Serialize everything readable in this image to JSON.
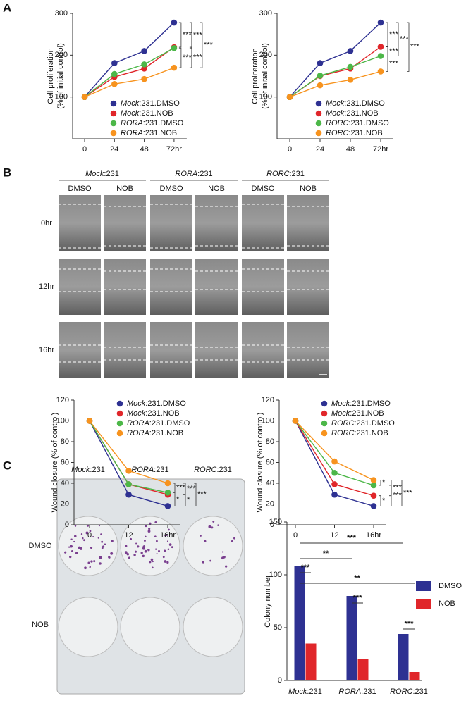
{
  "figure": {
    "panel_labels": [
      "A",
      "B",
      "C"
    ],
    "wound_assay": {
      "groups": [
        "Mock:231",
        "RORA:231",
        "RORC:231"
      ],
      "treatments": [
        "DMSO",
        "NOB"
      ],
      "times": [
        "0hr",
        "12hr",
        "16hr"
      ]
    },
    "colony_plate": {
      "columns": [
        "Mock:231",
        "RORA:231",
        "RORC:231"
      ],
      "rows": [
        "DMSO",
        "NOB"
      ]
    }
  },
  "chart_data": [
    {
      "type": "line",
      "y_label": [
        "Cell proliferation",
        "(% of initial control)"
      ],
      "categories": [
        "0",
        "24",
        "48",
        "72hr"
      ],
      "ylim": [
        0,
        300
      ],
      "yticks": [
        100,
        200,
        300
      ],
      "series": [
        {
          "name": "Mock:231.DMSO",
          "color": "#2e3192",
          "values": [
            100,
            181,
            210,
            278
          ]
        },
        {
          "name": "Mock:231.NOB",
          "color": "#e0262a",
          "values": [
            100,
            148,
            168,
            219
          ]
        },
        {
          "name": "RORA:231.DMSO",
          "color": "#4cb748",
          "values": [
            100,
            155,
            178,
            217
          ]
        },
        {
          "name": "RORA:231.NOB",
          "color": "#f7931e",
          "values": [
            100,
            131,
            143,
            170
          ]
        }
      ],
      "annotations": [
        "***",
        "***",
        "***",
        "***",
        "***"
      ]
    },
    {
      "type": "line",
      "y_label": [
        "Cell proliferation",
        "(% of initial control)"
      ],
      "categories": [
        "0",
        "24",
        "48",
        "72hr"
      ],
      "ylim": [
        0,
        300
      ],
      "yticks": [
        100,
        200,
        300
      ],
      "series": [
        {
          "name": "Mock:231.DMSO",
          "color": "#2e3192",
          "values": [
            100,
            181,
            210,
            278
          ]
        },
        {
          "name": "Mock:231.NOB",
          "color": "#e0262a",
          "values": [
            100,
            150,
            168,
            220
          ]
        },
        {
          "name": "RORC:231.DMSO",
          "color": "#4cb748",
          "values": [
            100,
            151,
            172,
            198
          ]
        },
        {
          "name": "RORC:231.NOB",
          "color": "#f7931e",
          "values": [
            100,
            128,
            141,
            161
          ]
        }
      ],
      "annotations": [
        "***",
        "***",
        "***",
        "***",
        "***"
      ]
    },
    {
      "type": "line",
      "y_label": "Wound closure (% of control)",
      "categories": [
        "0",
        "12",
        "16hr"
      ],
      "ylim": [
        0,
        120
      ],
      "yticks": [
        0,
        20,
        40,
        60,
        80,
        100,
        120
      ],
      "series": [
        {
          "name": "Mock:231.DMSO",
          "color": "#2e3192",
          "values": [
            100,
            29,
            18
          ]
        },
        {
          "name": "Mock:231.NOB",
          "color": "#e0262a",
          "values": [
            100,
            39,
            29
          ]
        },
        {
          "name": "RORA:231.DMSO",
          "color": "#4cb748",
          "values": [
            100,
            39,
            31
          ]
        },
        {
          "name": "RORA:231.NOB",
          "color": "#f7931e",
          "values": [
            100,
            52,
            40
          ]
        }
      ],
      "annotations": [
        "***",
        "*",
        "***",
        "*",
        "***"
      ]
    },
    {
      "type": "line",
      "y_label": "Wound closure (% of control)",
      "categories": [
        "0",
        "12",
        "16hr"
      ],
      "ylim": [
        0,
        120
      ],
      "yticks": [
        0,
        20,
        40,
        60,
        80,
        100,
        120
      ],
      "series": [
        {
          "name": "Mock:231.DMSO",
          "color": "#2e3192",
          "values": [
            100,
            29,
            18
          ]
        },
        {
          "name": "Mock:231.NOB",
          "color": "#e0262a",
          "values": [
            100,
            39,
            28
          ]
        },
        {
          "name": "RORC:231.DMSO",
          "color": "#4cb748",
          "values": [
            100,
            50,
            38
          ]
        },
        {
          "name": "RORC:231.NOB",
          "color": "#f7931e",
          "values": [
            100,
            61,
            43
          ]
        }
      ],
      "annotations": [
        "*",
        "*",
        "***",
        "***",
        "***"
      ]
    },
    {
      "type": "bar",
      "y_label": "Colony number",
      "categories": [
        "Mock:231",
        "RORA:231",
        "RORC:231"
      ],
      "ylim": [
        0,
        150
      ],
      "yticks": [
        0,
        50,
        100,
        150
      ],
      "series": [
        {
          "name": "DMSO",
          "color": "#2e3192",
          "values": [
            108,
            80,
            44
          ]
        },
        {
          "name": "NOB",
          "color": "#e0262a",
          "values": [
            35,
            20,
            8
          ]
        }
      ],
      "annotations": [
        "***",
        "**",
        "***",
        "**",
        "***",
        "***"
      ]
    }
  ]
}
